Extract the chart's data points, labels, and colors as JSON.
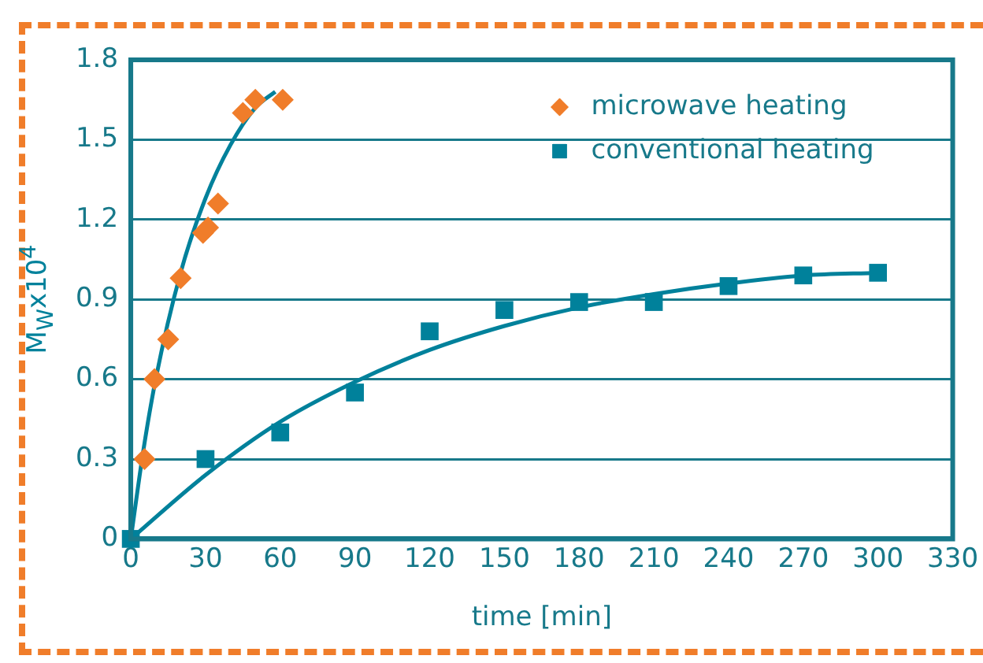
{
  "chart_data": {
    "type": "scatter",
    "xlabel": "time [min]",
    "ylabel": "M$_{W}$x10$^{4}$",
    "xlim": [
      0,
      330
    ],
    "xticks": [
      0,
      30,
      60,
      90,
      120,
      150,
      180,
      210,
      240,
      270,
      300,
      330
    ],
    "ylim": [
      0,
      1.8
    ],
    "yticks": [
      0,
      0.3,
      0.6,
      0.9,
      1.2,
      1.5,
      1.8
    ],
    "grid": "y",
    "legend": "top right",
    "series": [
      {
        "name": "microwave heating",
        "marker": "diamond",
        "color": "#f07d2a",
        "x": [
          5.5,
          9.5,
          15,
          20,
          29,
          31,
          35,
          45,
          50,
          61
        ],
        "values": [
          0.3,
          0.6,
          0.75,
          0.98,
          1.15,
          1.17,
          1.26,
          1.6,
          1.65,
          1.65
        ]
      },
      {
        "name": "conventional heating",
        "marker": "square",
        "color": "#00819b",
        "x": [
          0,
          30,
          60,
          90,
          120,
          150,
          180,
          210,
          240,
          270,
          300
        ],
        "values": [
          0,
          0.3,
          0.4,
          0.55,
          0.78,
          0.86,
          0.89,
          0.89,
          0.95,
          0.99,
          1.0
        ]
      },
      {
        "type": "line",
        "marker": "none",
        "color": "#00819b",
        "x": [
          0,
          5,
          10,
          20,
          30,
          40,
          50,
          58
        ],
        "values": [
          0,
          0.33,
          0.6,
          1.0,
          1.28,
          1.48,
          1.62,
          1.68
        ]
      },
      {
        "type": "line",
        "marker": "none",
        "color": "#00819b",
        "x": [
          0,
          30,
          60,
          90,
          120,
          150,
          180,
          210,
          240,
          270,
          300
        ],
        "values": [
          0,
          0.24,
          0.44,
          0.59,
          0.71,
          0.8,
          0.87,
          0.92,
          0.96,
          0.99,
          1.0
        ]
      }
    ]
  }
}
